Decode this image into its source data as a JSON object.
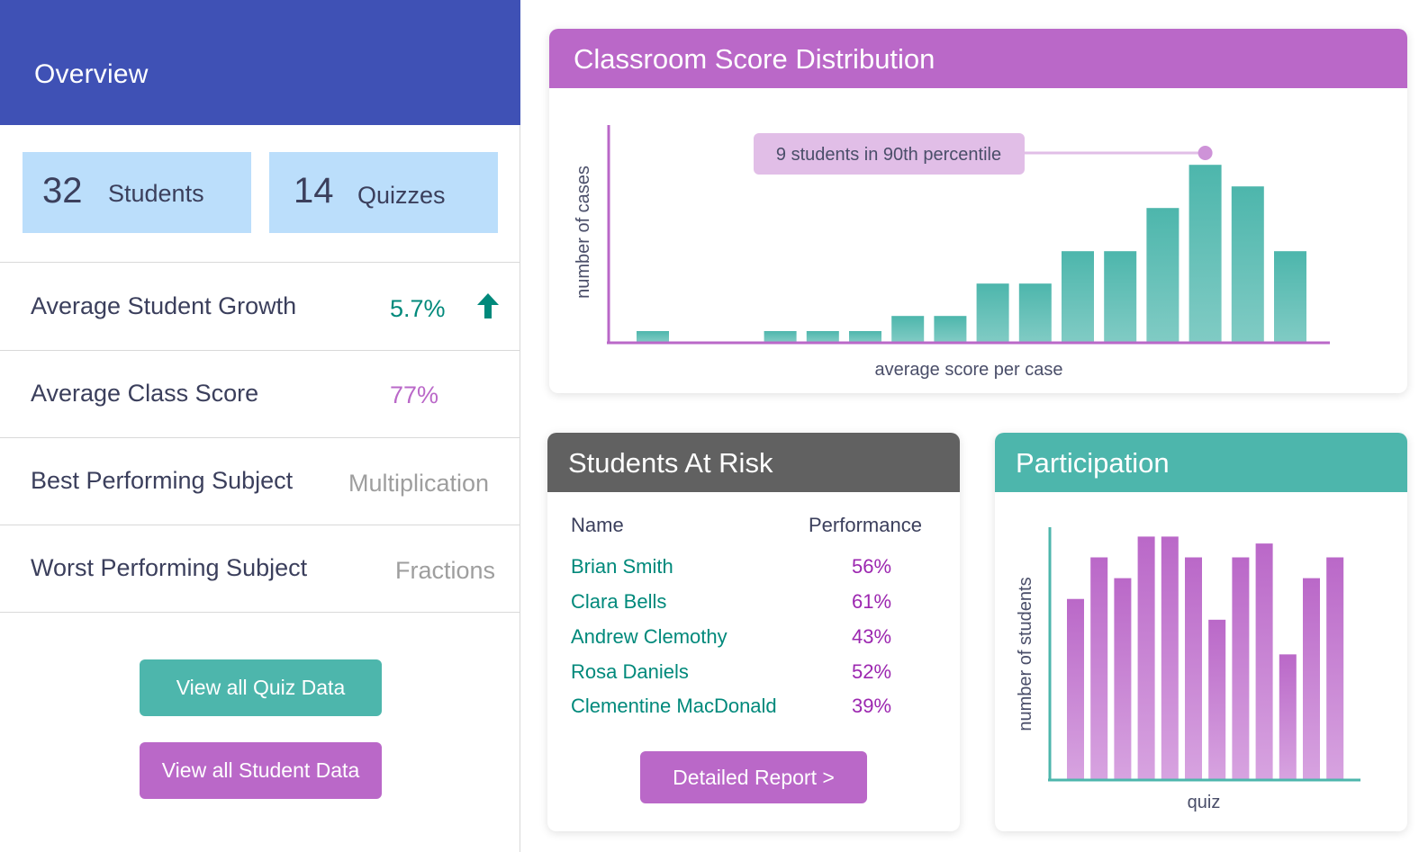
{
  "sidebar": {
    "title": "Overview",
    "stats": [
      {
        "value": "32",
        "label": "Students"
      },
      {
        "value": "14",
        "label": "Quizzes"
      }
    ],
    "metrics": [
      {
        "label": "Average Student Growth",
        "value": "5.7%",
        "color": "#00897b",
        "trend": "up-arrow-icon"
      },
      {
        "label": "Average Class Score",
        "value": "77%",
        "color": "#ba68c8"
      },
      {
        "label": "Best Performing Subject",
        "value": "Multiplication",
        "color": "#9e9e9e"
      },
      {
        "label": "Worst Performing Subject",
        "value": "Fractions",
        "color": "#9e9e9e"
      }
    ],
    "buttons": {
      "quiz": "View all Quiz Data",
      "student": "View all Student Data"
    }
  },
  "score_distribution": {
    "title": "Classroom Score Distribution",
    "annotation": "9 students in 90th percentile"
  },
  "students_at_risk": {
    "title": "Students At Risk",
    "columns": [
      "Name",
      "Performance"
    ],
    "rows": [
      {
        "name": "Brian Smith",
        "performance": "56%"
      },
      {
        "name": "Clara Bells",
        "performance": "61%"
      },
      {
        "name": "Andrew Clemothy",
        "performance": "43%"
      },
      {
        "name": "Rosa Daniels",
        "performance": "52%"
      },
      {
        "name": "Clementine MacDonald",
        "performance": "39%"
      }
    ],
    "report_button": "Detailed Report >"
  },
  "participation": {
    "title": "Participation"
  },
  "colors": {
    "primary": "#3f51b5",
    "teal": "#4db6ac",
    "purple": "#ba68c8",
    "light_blue": "#bbdefb",
    "dark_gray": "#616161"
  },
  "chart_data": [
    {
      "type": "bar",
      "title": "Classroom Score Distribution",
      "xlabel": "average score per case",
      "ylabel": "number of cases",
      "values": [
        0.5,
        0,
        0,
        0.5,
        0.5,
        0.5,
        1.2,
        1.2,
        2.7,
        2.7,
        4.2,
        4.2,
        6.2,
        8.2,
        7.2,
        4.2
      ],
      "ylim": [
        0,
        10
      ],
      "annotation": {
        "text": "9 students in 90th percentile",
        "bar_index": 13
      },
      "grid": false
    },
    {
      "type": "bar",
      "xlabel": "quiz",
      "ylabel": "number of students",
      "values": [
        26,
        32,
        29,
        35,
        35,
        32,
        23,
        32,
        34,
        18,
        29,
        32
      ],
      "ylim": [
        0,
        37
      ],
      "grid": false
    }
  ]
}
